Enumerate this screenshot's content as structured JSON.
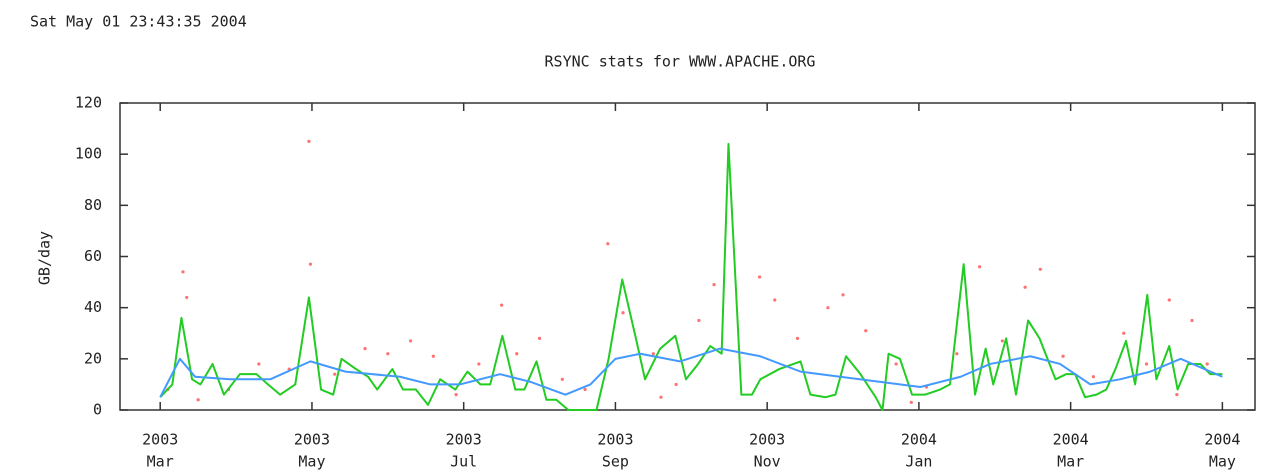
{
  "timestamp": "Sat May 01 23:43:35 2004",
  "chart_data": {
    "type": "line",
    "title": "RSYNC stats for WWW.APACHE.ORG",
    "y_label": "GB/day",
    "xlim": [
      -0.53,
      14.43
    ],
    "xticks": [
      {
        "value": 0,
        "label": [
          "2003",
          "Mar"
        ]
      },
      {
        "value": 2,
        "label": [
          "2003",
          "May"
        ]
      },
      {
        "value": 4,
        "label": [
          "2003",
          "Jul"
        ]
      },
      {
        "value": 6,
        "label": [
          "2003",
          "Sep"
        ]
      },
      {
        "value": 8,
        "label": [
          "2003",
          "Nov"
        ]
      },
      {
        "value": 10,
        "label": [
          "2004",
          "Jan"
        ]
      },
      {
        "value": 12,
        "label": [
          "2004",
          "Mar"
        ]
      },
      {
        "value": 14,
        "label": [
          "2004",
          "May"
        ]
      }
    ],
    "ylim": [
      0,
      120
    ],
    "yticks": [
      0,
      20,
      40,
      60,
      80,
      100,
      120
    ],
    "series": [
      {
        "type": "scatter",
        "color": "#ff7070",
        "x": [
          0.1,
          0.3,
          0.35,
          0.5,
          0.9,
          1.3,
          1.7,
          1.96,
          1.98,
          2.3,
          2.7,
          3.0,
          3.3,
          3.6,
          3.9,
          4.2,
          4.5,
          4.7,
          5.0,
          5.3,
          5.6,
          5.9,
          6.1,
          6.5,
          6.8,
          7.1,
          7.3,
          7.9,
          8.1,
          8.4,
          8.8,
          9.0,
          9.3,
          9.7,
          10.1,
          10.5,
          10.8,
          11.1,
          11.4,
          11.6,
          11.9,
          12.3,
          12.7,
          13.0,
          13.3,
          13.6,
          13.8,
          13.4,
          6.6,
          9.9
        ],
        "values": [
          8,
          54,
          44,
          4,
          8,
          18,
          16,
          105,
          57,
          14,
          24,
          22,
          27,
          21,
          6,
          18,
          41,
          22,
          28,
          12,
          8,
          65,
          38,
          22,
          10,
          35,
          49,
          52,
          43,
          28,
          40,
          45,
          31,
          18,
          9,
          22,
          56,
          27,
          48,
          55,
          21,
          13,
          30,
          18,
          43,
          35,
          18,
          6,
          5,
          3
        ]
      },
      {
        "type": "line",
        "color": "#22cc22",
        "x": [
          0,
          0.16,
          0.28,
          0.42,
          0.53,
          0.69,
          0.84,
          1.05,
          1.27,
          1.42,
          1.58,
          1.78,
          1.96,
          2.12,
          2.28,
          2.39,
          2.58,
          2.74,
          2.86,
          3.06,
          3.2,
          3.37,
          3.53,
          3.69,
          3.89,
          4.05,
          4.22,
          4.35,
          4.51,
          4.68,
          4.8,
          4.96,
          5.09,
          5.22,
          5.38,
          5.56,
          5.75,
          5.91,
          6.09,
          6.27,
          6.39,
          6.59,
          6.79,
          6.93,
          7.09,
          7.25,
          7.4,
          7.49,
          7.66,
          7.8,
          7.91,
          8.16,
          8.44,
          8.57,
          8.77,
          8.9,
          9.04,
          9.23,
          9.43,
          9.52,
          9.6,
          9.75,
          9.91,
          10.08,
          10.28,
          10.41,
          10.59,
          10.74,
          10.88,
          10.98,
          11.15,
          11.28,
          11.44,
          11.59,
          11.8,
          11.94,
          12.06,
          12.19,
          12.34,
          12.47,
          12.59,
          12.73,
          12.85,
          13.01,
          13.13,
          13.3,
          13.41,
          13.55,
          13.71,
          13.84,
          14
        ],
        "values": [
          5,
          10,
          36,
          12,
          10,
          18,
          6,
          14,
          14,
          10,
          6,
          10,
          44,
          8,
          6,
          20,
          16,
          13,
          8,
          16,
          8,
          8,
          2,
          12,
          8,
          15,
          10,
          10,
          29,
          8,
          8,
          19,
          4,
          4,
          0,
          0,
          0,
          20,
          51,
          28,
          12,
          24,
          29,
          12,
          18,
          25,
          22,
          104,
          6,
          6,
          12,
          16,
          19,
          6,
          5,
          6,
          21,
          14,
          5,
          0,
          22,
          20,
          6,
          6,
          8,
          10,
          57,
          6,
          24,
          10,
          28,
          6,
          35,
          28,
          12,
          14,
          14,
          5,
          6,
          8,
          16,
          27,
          10,
          45,
          12,
          25,
          8,
          18,
          18,
          14,
          14
        ]
      },
      {
        "type": "line",
        "color": "#4499ff",
        "x": [
          0,
          0.26,
          0.46,
          0.92,
          1.45,
          1.98,
          2.44,
          3.16,
          3.56,
          3.95,
          4.48,
          4.88,
          5.34,
          5.67,
          6.0,
          6.33,
          6.85,
          7.38,
          7.91,
          8.44,
          8.96,
          9.49,
          10.02,
          10.55,
          10.94,
          11.47,
          11.86,
          12.26,
          12.65,
          13.05,
          13.45,
          14.0
        ],
        "values": [
          5,
          20,
          13,
          12,
          12,
          19,
          15,
          13,
          10,
          10,
          14,
          11,
          6,
          10,
          20,
          22,
          19,
          24,
          21,
          15,
          13,
          11,
          9,
          13,
          18,
          21,
          18,
          10,
          12,
          15,
          20,
          13
        ]
      }
    ]
  }
}
